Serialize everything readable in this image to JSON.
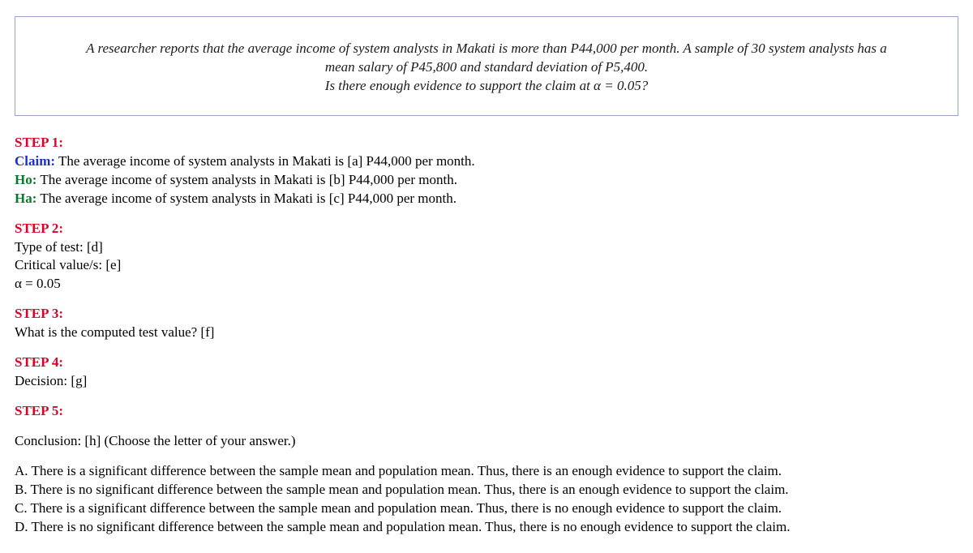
{
  "problem": {
    "line1": "A researcher reports that the average income of system analysts in Makati is more than P44,000 per month. A sample of 30 system analysts has a",
    "line2": "mean salary of P45,800 and standard deviation of P5,400.",
    "line3_pre": "Is there enough evidence to support the claim at ",
    "line3_eq": "α = 0.05?"
  },
  "step1": {
    "heading": "STEP 1:",
    "claim_label": "Claim:",
    "claim_text": " The average income of system analysts in Makati is [a] P44,000 per month.",
    "ho_label": "Ho:",
    "ho_text": " The average income of system analysts in Makati is [b] P44,000 per month.",
    "ha_label": "Ha:",
    "ha_text": " The average income of system analysts in Makati is [c] P44,000 per month."
  },
  "step2": {
    "heading": "STEP 2:",
    "type_line": "Type of test: [d]",
    "crit_line": "Critical value/s: [e]",
    "alpha_line": "α = 0.05"
  },
  "step3": {
    "heading": "STEP 3:",
    "line": "What is the computed test value? [f]"
  },
  "step4": {
    "heading": "STEP 4:",
    "line": "Decision: [g]"
  },
  "step5": {
    "heading": "STEP 5:",
    "conclusion_line": "Conclusion: [h] (Choose the letter of your answer.)",
    "option_a": "A. There is a significant difference between the sample mean and population mean. Thus, there is an enough evidence to support the claim.",
    "option_b": "B. There is no significant difference between the sample mean and population mean. Thus, there is an enough evidence to support the claim.",
    "option_c": "C. There is a significant difference between the sample mean and population mean. Thus, there is no enough evidence to support the claim.",
    "option_d": "D. There is no significant difference between the sample mean and population mean. Thus, there is no enough evidence to support the claim."
  }
}
